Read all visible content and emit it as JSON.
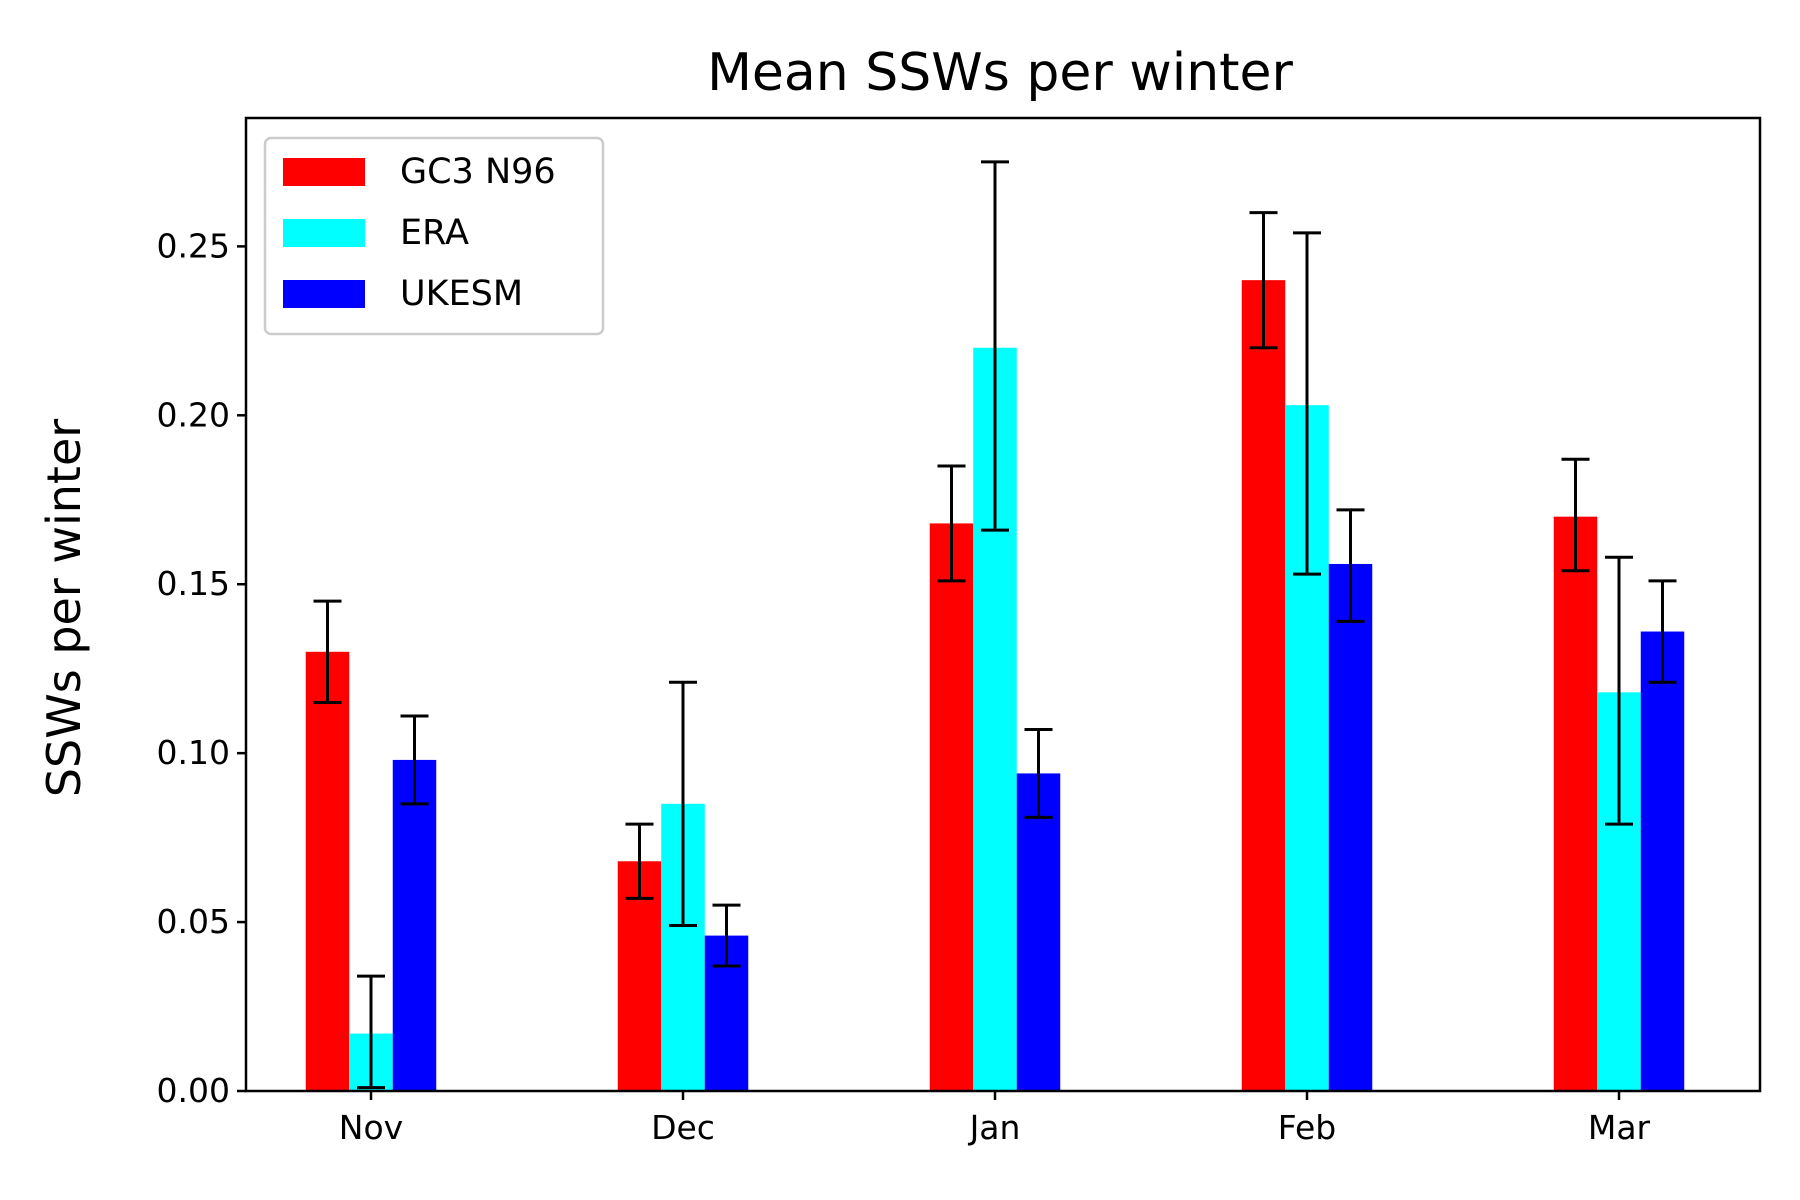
{
  "chart_data": {
    "type": "bar",
    "title": "Mean SSWs per winter",
    "xlabel": "",
    "ylabel": "SSWs per winter",
    "categories": [
      "Nov",
      "Dec",
      "Jan",
      "Feb",
      "Mar"
    ],
    "ylim": [
      0,
      0.288
    ],
    "yticks": [
      0.0,
      0.05,
      0.1,
      0.15,
      0.2,
      0.25
    ],
    "ytick_labels": [
      "0.00",
      "0.05",
      "0.10",
      "0.15",
      "0.20",
      "0.25"
    ],
    "grid": false,
    "legend_position": "top-left",
    "series": [
      {
        "name": "GC3 N96",
        "color": "#ff0000",
        "values": [
          0.13,
          0.068,
          0.168,
          0.24,
          0.17
        ],
        "error_low": [
          0.115,
          0.057,
          0.151,
          0.22,
          0.154
        ],
        "error_high": [
          0.145,
          0.079,
          0.185,
          0.26,
          0.187
        ]
      },
      {
        "name": "ERA",
        "color": "#00ffff",
        "values": [
          0.017,
          0.085,
          0.22,
          0.203,
          0.118
        ],
        "error_low": [
          0.001,
          0.049,
          0.166,
          0.153,
          0.079
        ],
        "error_high": [
          0.034,
          0.121,
          0.275,
          0.254,
          0.158
        ]
      },
      {
        "name": "UKESM",
        "color": "#0000ff",
        "values": [
          0.098,
          0.046,
          0.094,
          0.156,
          0.136
        ],
        "error_low": [
          0.085,
          0.037,
          0.081,
          0.139,
          0.121
        ],
        "error_high": [
          0.111,
          0.055,
          0.107,
          0.172,
          0.151
        ]
      }
    ]
  }
}
